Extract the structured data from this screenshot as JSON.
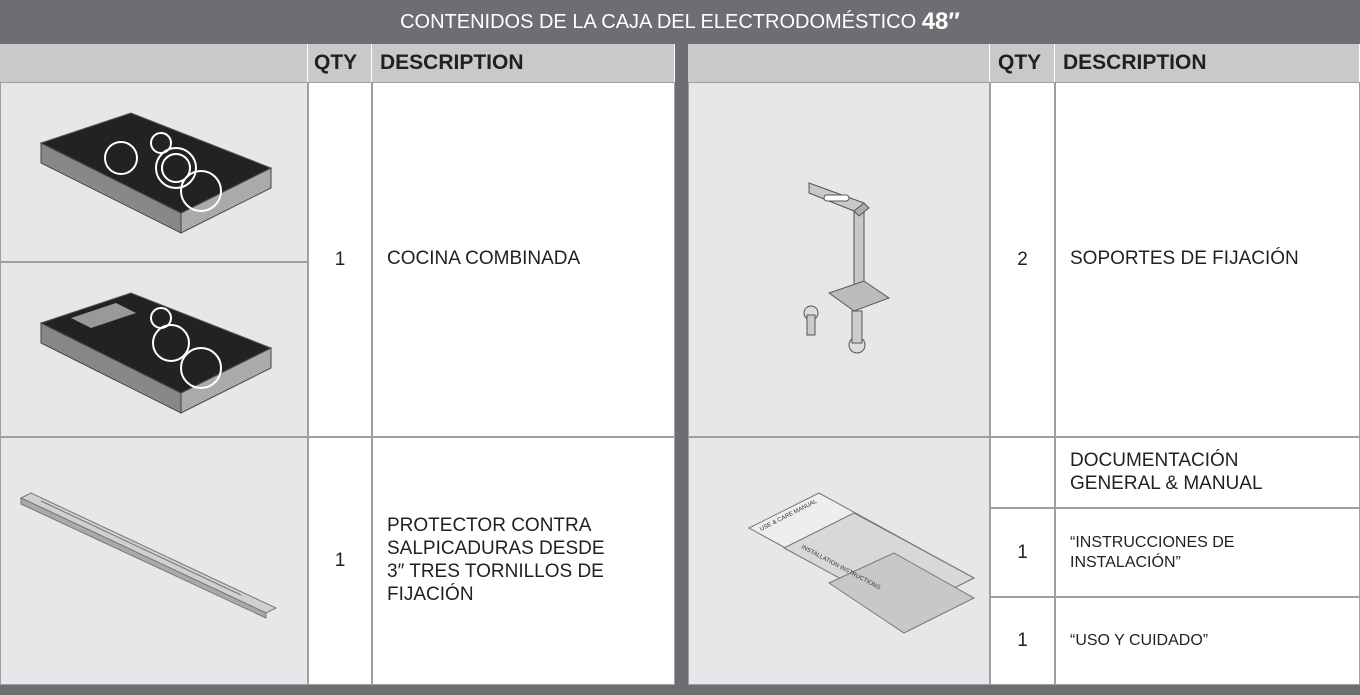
{
  "title": {
    "text": "CONTENIDOS DE LA CAJA DEL ELECTRODOMÉSTICO",
    "size": "48′′"
  },
  "table": {
    "left": {
      "headers": [
        "QTY",
        "DESCRIPTION"
      ],
      "rows": [
        {
          "qty": 1,
          "description": "COCINA COMBINADA"
        },
        {
          "qty": 1,
          "description": "PROTECTOR CONTRA SALPICADURAS DESDE 3″ TRES TORNILLOS DE FIJACIÓN"
        }
      ]
    },
    "right": {
      "headers": [
        "QTY",
        "DESCRIPTION"
      ],
      "rows": [
        {
          "qty": 2,
          "description": "SOPORTES DE FIJACIÓN"
        },
        {
          "description": "DOCUMENTACIÓN GENERAL & MANUAL"
        },
        {
          "qty": 1,
          "description": "“INSTRUCCIONES DE INSTALACIÓN”"
        },
        {
          "qty": 1,
          "description": "“USO Y CUIDADO”"
        }
      ]
    }
  },
  "illustration_labels": [
    "USE & CARE MANUAL",
    "INSTALLATION INSTRUCTIONS"
  ]
}
